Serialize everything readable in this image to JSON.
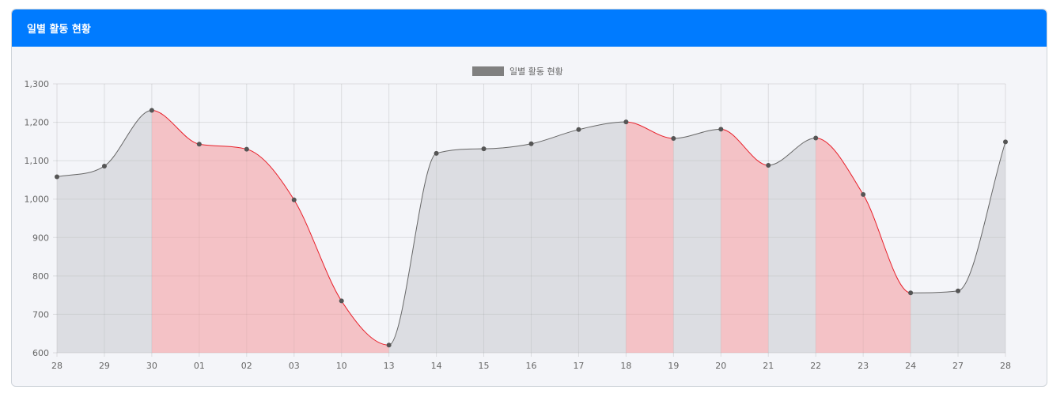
{
  "card": {
    "title": "일별 활동 현황"
  },
  "colors": {
    "header_bg": "#007bff",
    "line_up": "#666666",
    "fill_up": "rgba(190,192,198,0.45)",
    "line_down": "#e8202a",
    "fill_down": "rgba(244,160,164,0.6)",
    "point": "#555555",
    "legend_swatch": "#808080"
  },
  "chart_data": {
    "type": "area",
    "categories": [
      "28",
      "29",
      "30",
      "01",
      "02",
      "03",
      "10",
      "13",
      "14",
      "15",
      "16",
      "17",
      "18",
      "19",
      "20",
      "21",
      "22",
      "23",
      "24",
      "27",
      "28"
    ],
    "series": [
      {
        "name": "일별 활동 현황",
        "values": [
          1058,
          1086,
          1231,
          1143,
          1130,
          998,
          735,
          620,
          1119,
          1131,
          1144,
          1181,
          1201,
          1158,
          1182,
          1088,
          1159,
          1012,
          756,
          761,
          1149
        ]
      }
    ],
    "ylim": [
      600,
      1300
    ],
    "yticks": [
      "600",
      "700",
      "800",
      "900",
      "1,000",
      "1,100",
      "1,200",
      "1,300"
    ],
    "legend": "top-center",
    "grid": true
  }
}
